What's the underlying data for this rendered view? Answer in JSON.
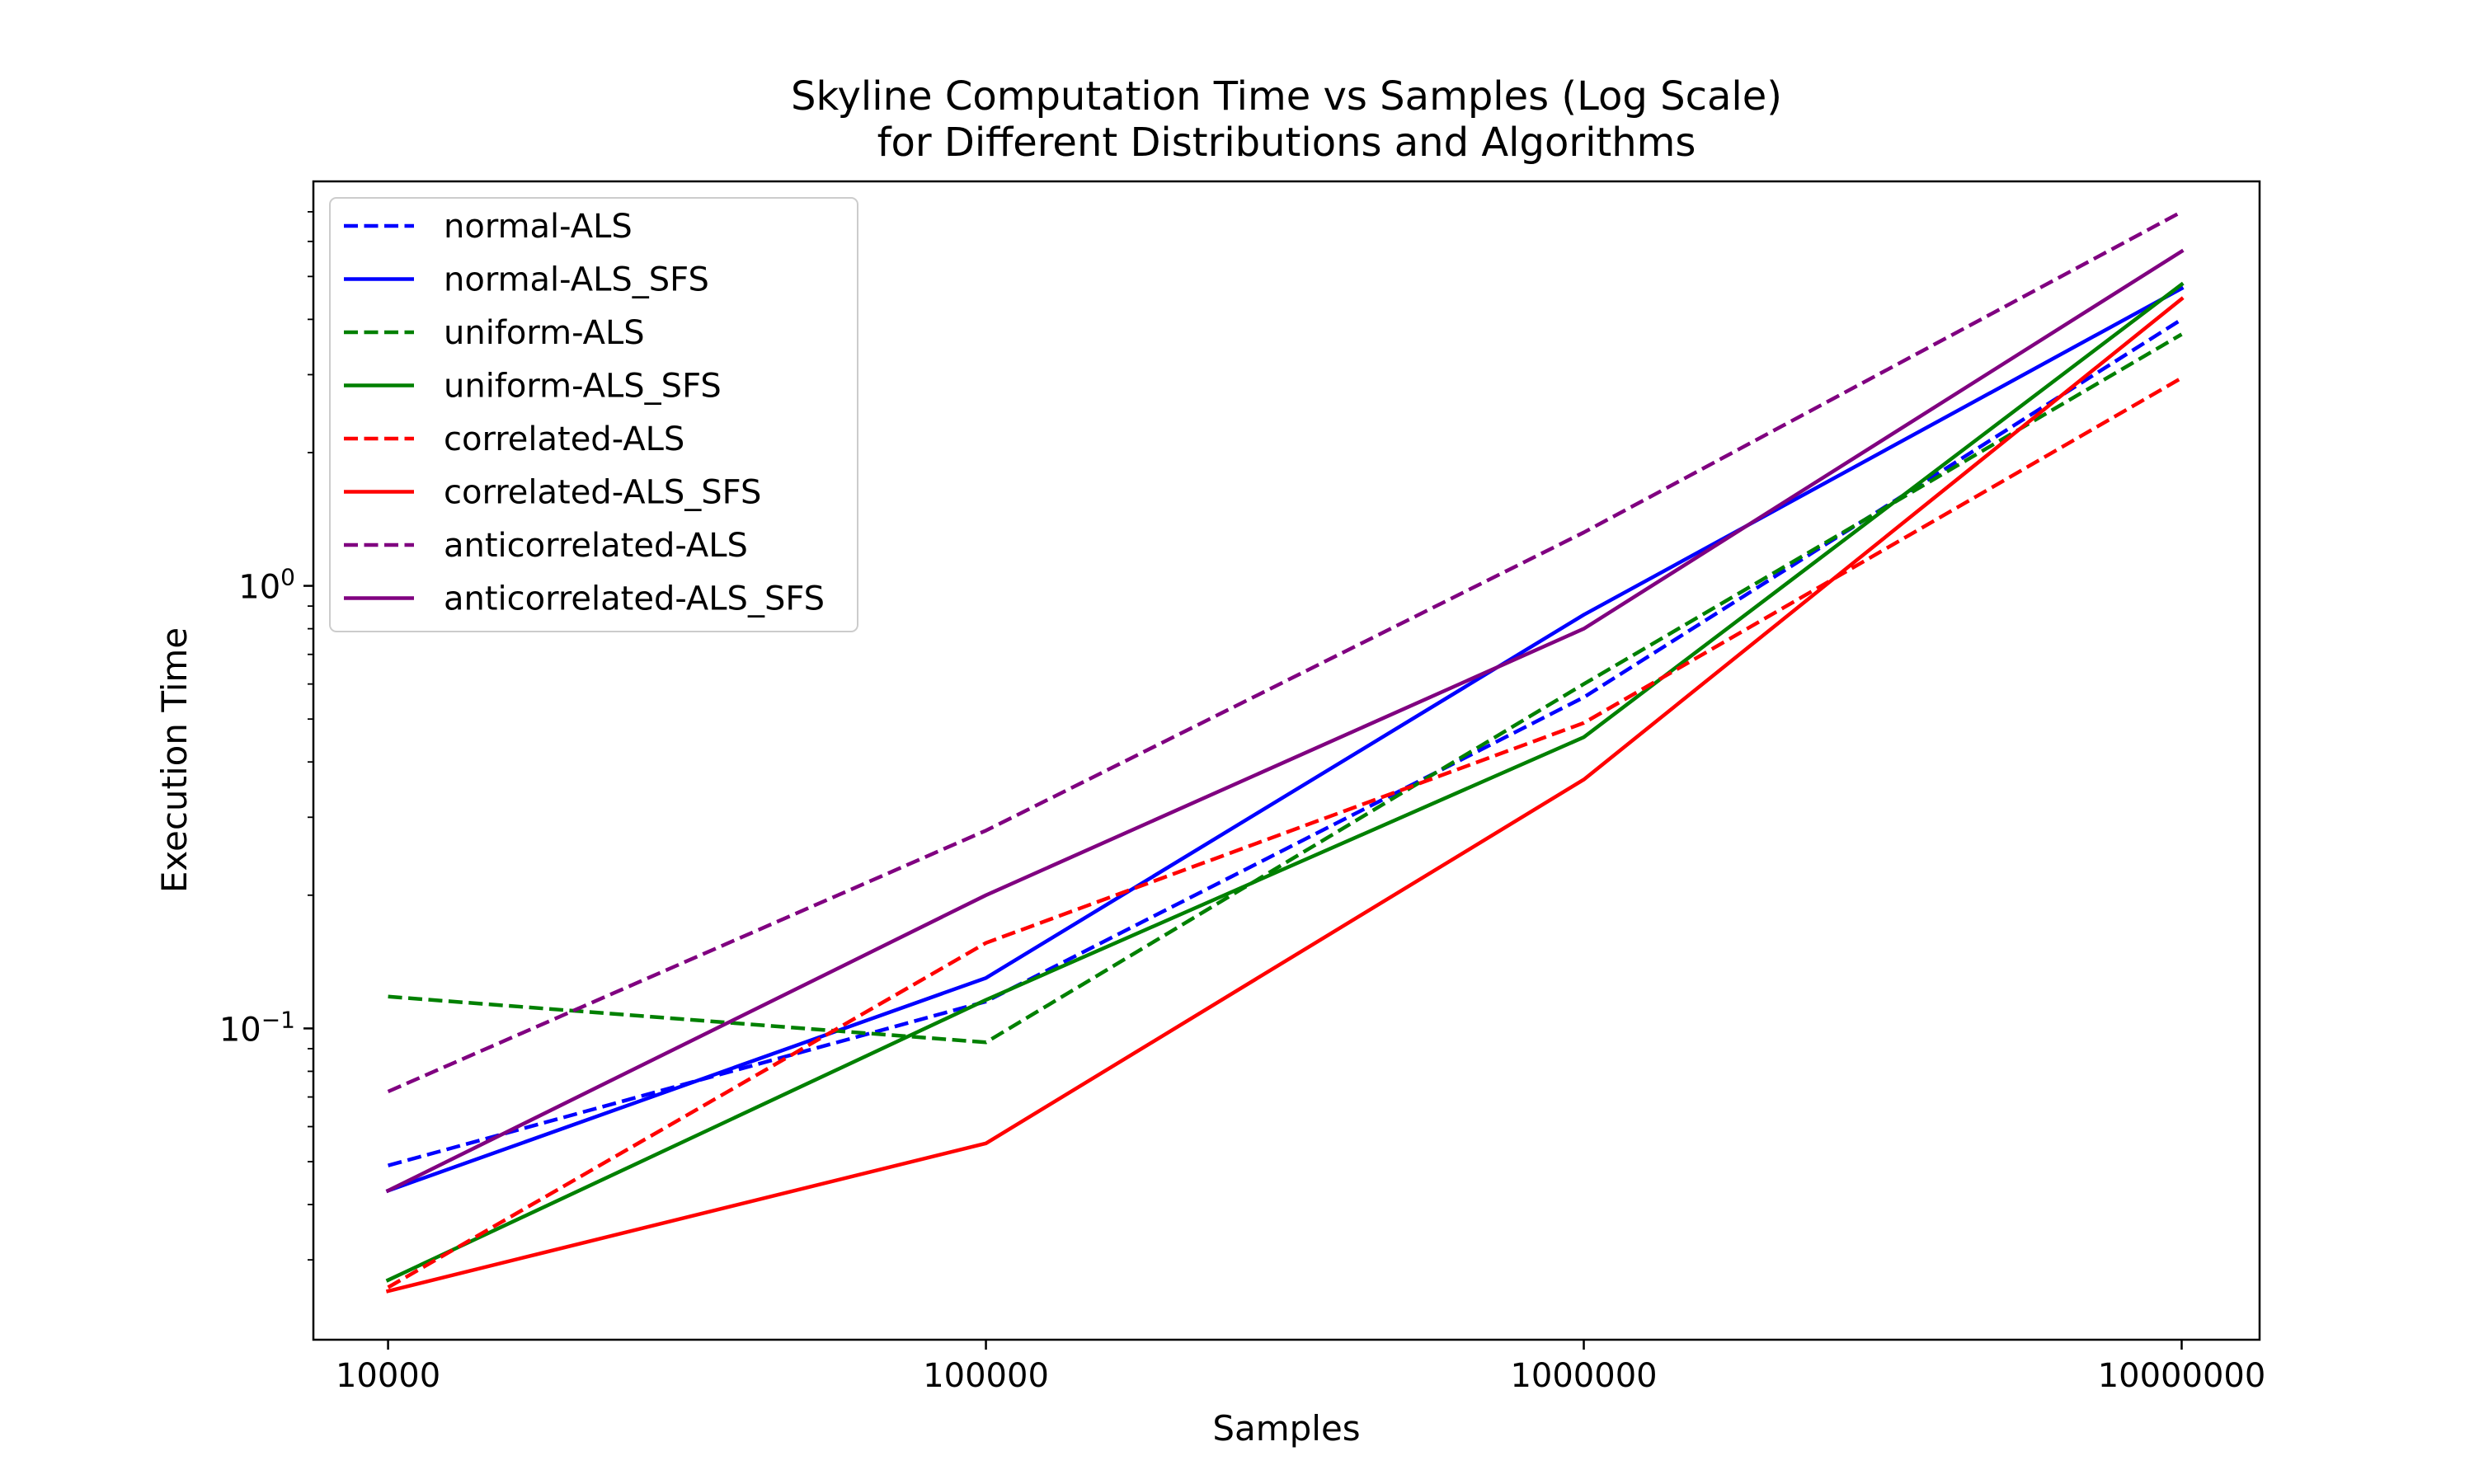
{
  "chart_data": {
    "type": "line",
    "title_line1": "Skyline Computation Time vs Samples (Log Scale)",
    "title_line2": "for Different Distributions and Algorithms",
    "xlabel": "Samples",
    "ylabel": "Execution Time",
    "x_scale": "log",
    "y_scale": "log",
    "x": [
      10000,
      100000,
      1000000,
      10000000
    ],
    "x_tick_labels": [
      "10000",
      "100000",
      "1000000",
      "10000000"
    ],
    "y_major_ticks": [
      {
        "value": 0.1,
        "base": "10",
        "exp": "−1"
      },
      {
        "value": 1,
        "base": "10",
        "exp": "0"
      }
    ],
    "y_minor_ticks": [
      0.03,
      0.04,
      0.05,
      0.06,
      0.07,
      0.08,
      0.09,
      0.2,
      0.3,
      0.4,
      0.5,
      0.6,
      0.7,
      0.8,
      0.9,
      2,
      3,
      4,
      5,
      6,
      7
    ],
    "xlim": [
      7500,
      13500000
    ],
    "ylim": [
      0.0198,
      8.2
    ],
    "grid": false,
    "legend_position": "top-left",
    "series": [
      {
        "name": "normal-ALS",
        "color": "#0000ff",
        "dash": true,
        "values": [
          0.049,
          0.115,
          0.56,
          4.0
        ]
      },
      {
        "name": "normal-ALS_SFS",
        "color": "#0000ff",
        "dash": false,
        "values": [
          0.043,
          0.13,
          0.86,
          4.7
        ]
      },
      {
        "name": "uniform-ALS",
        "color": "#008000",
        "dash": true,
        "values": [
          0.118,
          0.093,
          0.6,
          3.7
        ]
      },
      {
        "name": "uniform-ALS_SFS",
        "color": "#008000",
        "dash": false,
        "values": [
          0.027,
          0.116,
          0.455,
          4.8
        ]
      },
      {
        "name": "correlated-ALS",
        "color": "#ff0000",
        "dash": true,
        "values": [
          0.026,
          0.156,
          0.49,
          2.95
        ]
      },
      {
        "name": "correlated-ALS_SFS",
        "color": "#ff0000",
        "dash": false,
        "values": [
          0.0255,
          0.055,
          0.365,
          4.45
        ]
      },
      {
        "name": "anticorrelated-ALS",
        "color": "#800080",
        "dash": true,
        "values": [
          0.072,
          0.28,
          1.32,
          7.0
        ]
      },
      {
        "name": "anticorrelated-ALS_SFS",
        "color": "#800080",
        "dash": false,
        "values": [
          0.043,
          0.2,
          0.8,
          5.7
        ]
      }
    ]
  }
}
